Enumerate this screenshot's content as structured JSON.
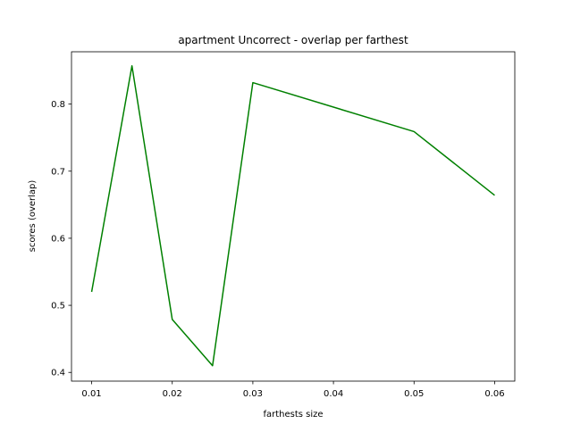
{
  "chart_data": {
    "type": "line",
    "title": "apartment Uncorrect - overlap per farthest",
    "xlabel": "farthests size",
    "ylabel": "scores (overlap)",
    "xlim": [
      0.0075,
      0.0625
    ],
    "ylim": [
      0.387,
      0.878
    ],
    "x_ticks": [
      0.01,
      0.02,
      0.03,
      0.04,
      0.05,
      0.06
    ],
    "x_tick_labels": [
      "0.01",
      "0.02",
      "0.03",
      "0.04",
      "0.05",
      "0.06"
    ],
    "y_ticks": [
      0.4,
      0.5,
      0.6,
      0.7,
      0.8
    ],
    "y_tick_labels": [
      "0.4",
      "0.5",
      "0.6",
      "0.7",
      "0.8"
    ],
    "grid": false,
    "legend": "none",
    "series": [
      {
        "color": "#008000",
        "x": [
          0.01,
          0.015,
          0.02,
          0.025,
          0.03,
          0.05,
          0.06
        ],
        "y": [
          0.52,
          0.857,
          0.479,
          0.41,
          0.832,
          0.759,
          0.664
        ]
      }
    ]
  }
}
